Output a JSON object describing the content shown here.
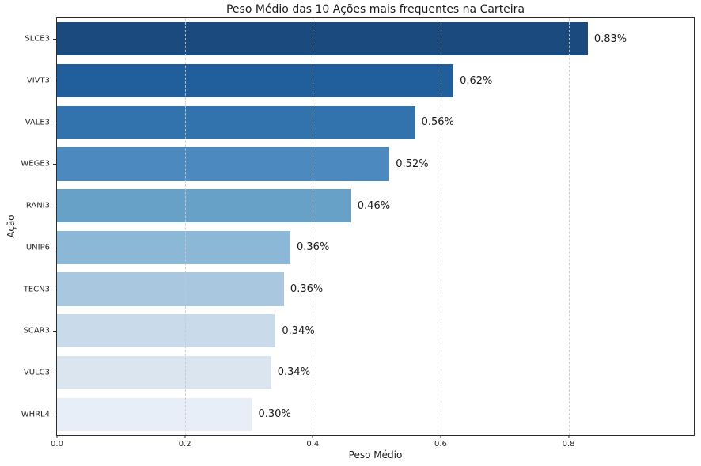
{
  "chart_data": {
    "type": "bar",
    "orientation": "horizontal",
    "title": "Peso Médio das 10 Ações mais frequentes na Carteira",
    "xlabel": "Peso Médio",
    "ylabel": "Ação",
    "categories": [
      "SLCE3",
      "VIVT3",
      "VALE3",
      "WEGE3",
      "RANI3",
      "UNIP6",
      "TECN3",
      "SCAR3",
      "VULC3",
      "WHRL4"
    ],
    "values": [
      0.83,
      0.62,
      0.56,
      0.52,
      0.46,
      0.365,
      0.355,
      0.342,
      0.335,
      0.305
    ],
    "value_labels": [
      "0.83%",
      "0.62%",
      "0.56%",
      "0.52%",
      "0.46%",
      "0.36%",
      "0.36%",
      "0.34%",
      "0.34%",
      "0.30%"
    ],
    "bar_colors": [
      "#1b4b7e",
      "#205e9c",
      "#3273ae",
      "#4c89bf",
      "#68a1c8",
      "#8cb8d8",
      "#a9c8e0",
      "#c9dbea",
      "#dae5f0",
      "#e7eef7"
    ],
    "xlim": [
      0.0,
      0.996
    ],
    "x_ticks": [
      0.0,
      0.2,
      0.4,
      0.6,
      0.8
    ],
    "x_tick_labels": [
      "0.0",
      "0.2",
      "0.4",
      "0.6",
      "0.8"
    ],
    "grid": "vertical-dashed",
    "legend_position": "none"
  },
  "style": {
    "grid_color": "#c9c9c9",
    "spine_color": "#2b2b2b",
    "text_color": "#1a1a1a",
    "background": "#ffffff"
  }
}
